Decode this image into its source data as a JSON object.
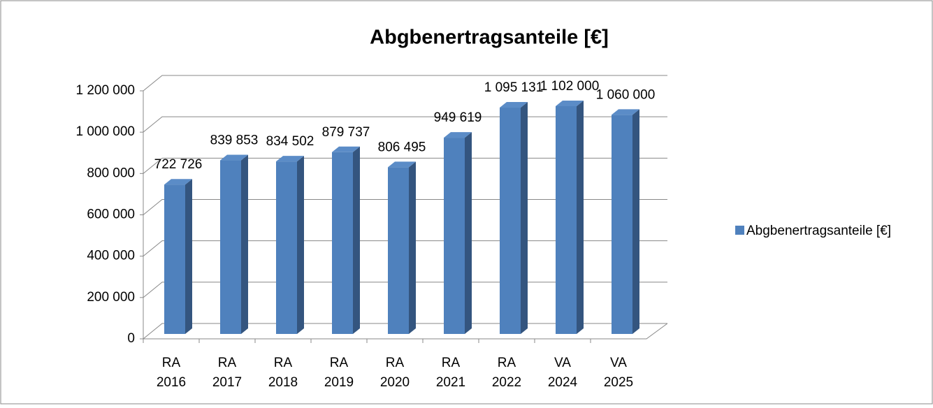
{
  "chart_data": {
    "type": "bar3d",
    "title": "Abgbenertragsanteile [€]",
    "categories": [
      "RA 2016",
      "RA 2017",
      "RA 2018",
      "RA 2019",
      "RA 2020",
      "RA 2021",
      "RA 2022",
      "VA 2024",
      "VA 2025"
    ],
    "series": [
      {
        "name": "Abgbenertragsanteile [€]",
        "color": "#4f81bd",
        "values": [
          722726,
          839853,
          834502,
          879737,
          806495,
          949619,
          1095131,
          1102000,
          1060000
        ],
        "value_labels": [
          "722 726",
          "839 853",
          "834 502",
          "879 737",
          "806 495",
          "949 619",
          "1 095 131",
          "1 102 000",
          "1 060 000"
        ]
      }
    ],
    "ylim": [
      0,
      1200000
    ],
    "yticks": [
      0,
      {
        "value": 200000,
        "label": "200 000"
      },
      {
        "value": 400000,
        "label": "400 000"
      },
      {
        "value": 600000,
        "label": "600 000"
      },
      {
        "value": 800000,
        "label": "800 000"
      },
      {
        "value": 1000000,
        "label": "1 000 000"
      },
      {
        "value": 1200000,
        "label": "1 200 000"
      }
    ],
    "grid": true,
    "legend": "right"
  }
}
